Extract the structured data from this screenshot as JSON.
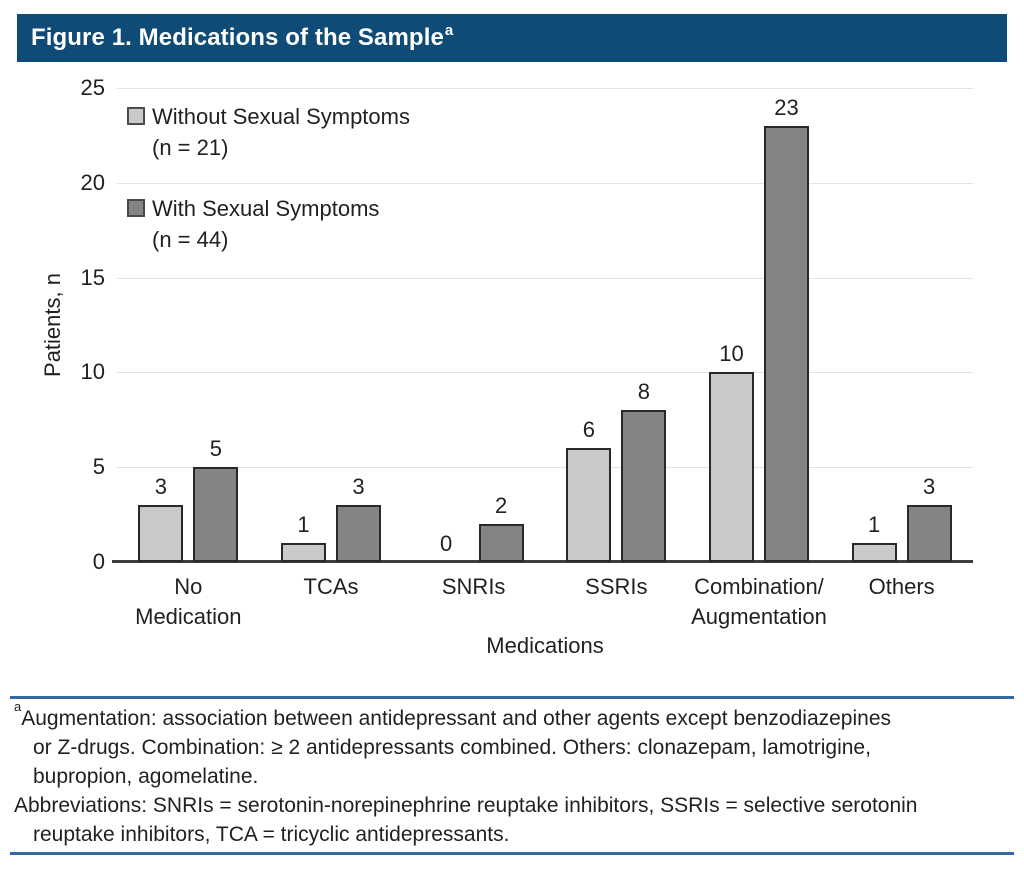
{
  "header": {
    "title": "Figure 1. Medications of the Sample",
    "superscript": "a"
  },
  "chart_data": {
    "type": "bar",
    "title": "Figure 1. Medications of the Sample",
    "categories": [
      {
        "label": "No Medication",
        "lines": [
          "No",
          "Medication"
        ]
      },
      {
        "label": "TCAs",
        "lines": [
          "TCAs"
        ]
      },
      {
        "label": "SNRIs",
        "lines": [
          "SNRIs"
        ]
      },
      {
        "label": "SSRIs",
        "lines": [
          "SSRIs"
        ]
      },
      {
        "label": "Combination/Augmentation",
        "lines": [
          "Combination/",
          "Augmentation"
        ]
      },
      {
        "label": "Others",
        "lines": [
          "Others"
        ]
      }
    ],
    "series": [
      {
        "name": "Without Sexual Symptoms",
        "n_label": "(n = 21)",
        "color": "#cbc8c9",
        "values": [
          3,
          1,
          0,
          6,
          10,
          1
        ]
      },
      {
        "name": "With Sexual Symptoms",
        "n_label": "(n = 44)",
        "color": "#868387",
        "values": [
          5,
          3,
          2,
          8,
          23,
          3
        ]
      }
    ],
    "xlabel": "Medications",
    "ylabel": "Patients, n",
    "ylim": [
      0,
      25
    ],
    "yticks": [
      0,
      5,
      10,
      15,
      20,
      25
    ],
    "grid": true,
    "legend_position": "top-left-inside",
    "bar_value_labels_shown": true
  },
  "footnotes": {
    "lines": [
      {
        "sup": "a",
        "indent": false,
        "text": "Augmentation: association between antidepressant and other agents except benzodiazepines"
      },
      {
        "indent": true,
        "text": "or Z-drugs. Combination: ≥ 2 antidepressants combined. Others: clonazepam, lamotrigine,"
      },
      {
        "indent": true,
        "text": "bupropion, agomelatine."
      },
      {
        "indent": false,
        "text": "Abbreviations: SNRIs = serotonin-norepinephrine reuptake inhibitors, SSRIs = selective serotonin"
      },
      {
        "indent": true,
        "text": "reuptake inhibitors, TCA = tricyclic antidepressants."
      }
    ]
  },
  "colors": {
    "header_bg": "#0e4b76",
    "header_text": "#ffffff",
    "footnote_rule": "#33699e",
    "gridline": "#e3e1e1",
    "axis_line": "#3e3c3d",
    "bar_border": "#2a2829",
    "text": "#231f20"
  }
}
